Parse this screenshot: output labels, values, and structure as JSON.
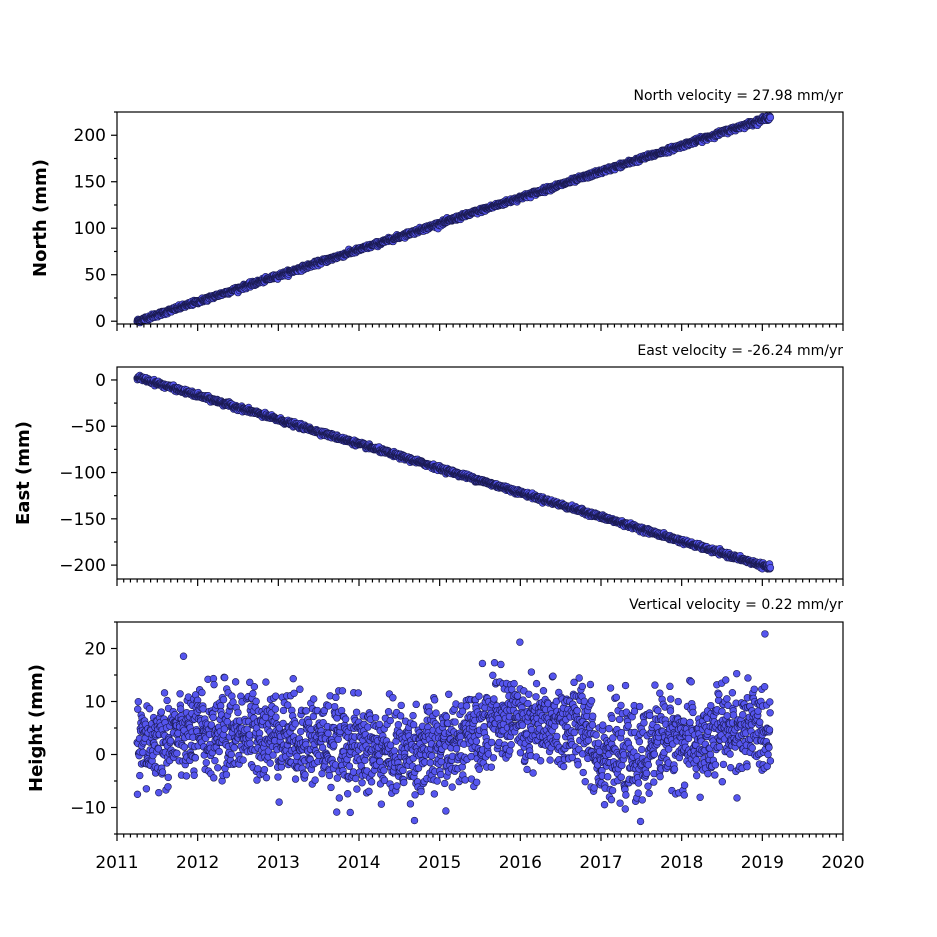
{
  "chart_data": [
    {
      "type": "scatter",
      "title": "North velocity = 27.98 mm/yr",
      "xlabel": "",
      "ylabel": "North (mm)",
      "xlim": [
        2011,
        2020
      ],
      "ylim": [
        -3,
        225
      ],
      "yticks": [
        0,
        50,
        100,
        150,
        200
      ],
      "x_ticks_labeled": false,
      "x_range_of_data": [
        2011.25,
        2019.1
      ],
      "trend": {
        "slope_mm_per_yr": 27.98,
        "y_at_start": 0
      },
      "noise_sd": 1.2,
      "marker_color": "#5555ee"
    },
    {
      "type": "scatter",
      "title": "East velocity = -26.24 mm/yr",
      "xlabel": "",
      "ylabel": "East (mm)",
      "xlim": [
        2011,
        2020
      ],
      "ylim": [
        -215,
        14
      ],
      "yticks": [
        0,
        -50,
        -100,
        -150,
        -200
      ],
      "x_ticks_labeled": false,
      "x_range_of_data": [
        2011.25,
        2019.1
      ],
      "trend": {
        "slope_mm_per_yr": -26.24,
        "y_at_start": 3
      },
      "noise_sd": 1.2,
      "marker_color": "#5555ee"
    },
    {
      "type": "scatter",
      "title": "Vertical velocity = 0.22 mm/yr",
      "xlabel": "",
      "ylabel": "Height (mm)",
      "xlim": [
        2011,
        2020
      ],
      "ylim": [
        -15,
        25
      ],
      "yticks": [
        20,
        10,
        0,
        -10
      ],
      "x_ticks_labeled": true,
      "xticks": [
        "2011",
        "2012",
        "2013",
        "2014",
        "2015",
        "2016",
        "2017",
        "2018",
        "2019",
        "2020"
      ],
      "x_range_of_data": [
        2011.25,
        2019.1
      ],
      "trend": {
        "slope_mm_per_yr": 0.22,
        "y_at_start": 2
      },
      "noise_sd": 4.2,
      "marker_color": "#5555ee"
    }
  ],
  "tick_labels": {
    "north": [
      "0",
      "50",
      "100",
      "150",
      "200"
    ],
    "east": [
      "0",
      "−50",
      "−100",
      "−150",
      "−200"
    ],
    "height": [
      "20",
      "10",
      "0",
      "−10"
    ],
    "years": [
      "2011",
      "2012",
      "2013",
      "2014",
      "2015",
      "2016",
      "2017",
      "2018",
      "2019",
      "2020"
    ]
  }
}
